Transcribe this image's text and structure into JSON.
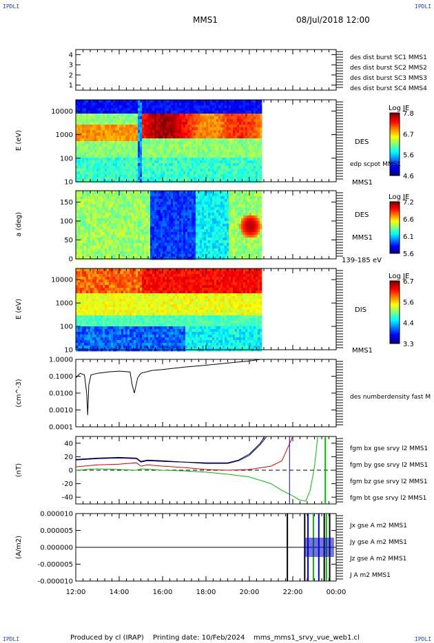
{
  "corners": {
    "tl": "IPDLI",
    "tr": "IPDLI",
    "bl": "IPDLI",
    "br": "IPDLI"
  },
  "header": {
    "mission": "MMS1",
    "date": "08/Jul/2018 12:00"
  },
  "footer": {
    "produced": "Produced by cl (IRAP)",
    "printing": "Printing date: 10/Feb/2024",
    "file": "mms_mms1_srvy_vue_web1.cl"
  },
  "colors": {
    "mms1": "#0000ff",
    "mms2": "#ff00ff",
    "mms3": "#ff0000",
    "mms4": "#00cc00"
  },
  "chart_data": [
    {
      "type": "line",
      "panel": "availability",
      "y_ticks": [
        "4",
        "3",
        "2",
        "1"
      ],
      "ylim": [
        0.5,
        4.5
      ],
      "series": [
        {
          "name": "des dist burst SC1 MMS1",
          "color": "#0000ff"
        },
        {
          "name": "des dist burst SC2 MMS2",
          "color": "#ff00ff"
        },
        {
          "name": "des dist burst SC3 MMS3",
          "color": "#ff0000"
        },
        {
          "name": "des dist burst SC4 MMS4",
          "color": "#00cc00"
        }
      ]
    },
    {
      "type": "heatmap",
      "panel": "des-energy",
      "ylabel": "E (eV)",
      "y_ticks": [
        "10000",
        "1000",
        "100",
        "10"
      ],
      "ylim": [
        10,
        30000
      ],
      "log_y": true,
      "instrument": "DES",
      "note": "edp scpot MMS1",
      "spacecraft": "MMS1",
      "colorbar": {
        "title": "Log JE",
        "ticks": [
          "7.8",
          "6.7",
          "5.6",
          "4.6"
        ],
        "range": [
          4.6,
          7.8
        ]
      },
      "data_end": "20:30"
    },
    {
      "type": "heatmap",
      "panel": "des-pitch",
      "ylabel": "a (deg)",
      "y_ticks": [
        "150",
        "100",
        "50",
        "0"
      ],
      "ylim": [
        0,
        180
      ],
      "instrument": "DES",
      "spacecraft": "MMS1",
      "energy_range": "139-185 eV",
      "colorbar": {
        "title": "Log JE",
        "ticks": [
          "7.2",
          "6.6",
          "6.1",
          "5.6"
        ],
        "range": [
          5.6,
          7.2
        ]
      },
      "data_end": "20:30"
    },
    {
      "type": "heatmap",
      "panel": "dis-energy",
      "ylabel": "E (eV)",
      "y_ticks": [
        "10000",
        "1000",
        "100",
        "10"
      ],
      "ylim": [
        10,
        30000
      ],
      "log_y": true,
      "instrument": "DIS",
      "spacecraft": "MMS1",
      "colorbar": {
        "title": "Log JE",
        "ticks": [
          "6.7",
          "5.6",
          "4.4",
          "3.3"
        ],
        "range": [
          3.3,
          6.7
        ]
      },
      "data_end": "20:30"
    },
    {
      "type": "line",
      "panel": "density",
      "ylabel": "(cm^-3)",
      "y_ticks": [
        "1.0000",
        "0.1000",
        "0.0100",
        "0.0010",
        "0.0001"
      ],
      "ylim": [
        0.0001,
        1.0
      ],
      "log_y": true,
      "series": [
        {
          "name": "des numberdensity fast M",
          "color": "#000000",
          "x": [
            12.0,
            12.2,
            12.4,
            12.5,
            12.55,
            12.6,
            12.7,
            13.0,
            13.5,
            14.0,
            14.5,
            14.6,
            14.7,
            14.85,
            15.0,
            15.5,
            16.0,
            17.0,
            18.0,
            19.0,
            19.5,
            20.0,
            20.5
          ],
          "y": [
            0.08,
            0.15,
            0.12,
            0.01,
            0.0005,
            0.03,
            0.12,
            0.15,
            0.18,
            0.2,
            0.18,
            0.03,
            0.01,
            0.08,
            0.15,
            0.22,
            0.25,
            0.35,
            0.45,
            0.6,
            0.7,
            0.8,
            1.0
          ]
        }
      ]
    },
    {
      "type": "line",
      "panel": "magnetic-field",
      "ylabel": "(nT)",
      "y_ticks": [
        "40",
        "20",
        "0",
        "-20",
        "-40"
      ],
      "ylim": [
        -50,
        50
      ],
      "series": [
        {
          "name": "fgm bx gse srvy l2 MMS1",
          "color": "#dd0000",
          "x": [
            12,
            13,
            14,
            14.8,
            15,
            15.3,
            16,
            17,
            18,
            19,
            20,
            21,
            21.5,
            22
          ],
          "y": [
            5,
            8,
            9,
            11,
            6,
            8,
            6,
            4,
            1,
            0,
            1,
            6,
            14,
            50
          ]
        },
        {
          "name": "fgm by gse srvy l2 MMS1",
          "color": "#00bb00",
          "x": [
            12,
            13,
            14,
            14.8,
            15,
            16,
            17,
            18,
            19,
            20,
            21,
            21.5,
            22,
            22.3,
            22.6,
            22.8,
            23,
            23.15
          ],
          "y": [
            0,
            2,
            1,
            0,
            2,
            0,
            -1,
            -3,
            -6,
            -10,
            -20,
            -30,
            -38,
            -44,
            -46,
            -30,
            5,
            50
          ]
        },
        {
          "name": "fgm bz gse srvy l2 MMS1",
          "color": "#0000cc",
          "x": [
            12,
            13,
            14,
            14.8,
            15,
            15.3,
            16,
            17,
            18,
            19,
            19.5,
            20,
            20.5,
            20.8
          ],
          "y": [
            15,
            17,
            18,
            17,
            12,
            14,
            13,
            12,
            10,
            10,
            14,
            22,
            38,
            50
          ]
        },
        {
          "name": "fgm bt gse srvy l2 MMS1",
          "color": "#000000",
          "x": [
            12,
            13,
            14,
            14.8,
            15,
            15.3,
            16,
            17,
            18,
            19,
            19.5,
            20,
            20.5,
            20.7
          ],
          "y": [
            16,
            18,
            19,
            18,
            13,
            15,
            14,
            12,
            11,
            11,
            15,
            24,
            40,
            50
          ]
        }
      ]
    },
    {
      "type": "line",
      "panel": "current-density",
      "ylabel": "(A/m2)",
      "y_ticks": [
        "0.000010",
        "0.000005",
        "0.000000",
        "-0.000005",
        "-0.000010"
      ],
      "ylim": [
        -1e-05,
        1e-05
      ],
      "series": [
        {
          "name": "Jx gse A m2 MMS1",
          "color": "#dd0000"
        },
        {
          "name": "Jy gse A m2 MMS1",
          "color": "#00bb00"
        },
        {
          "name": "Jz gse A m2 MMS1",
          "color": "#0000cc"
        },
        {
          "name": "J A m2 MMS1",
          "color": "#000000"
        }
      ]
    }
  ],
  "x_axis": {
    "ticks": [
      "12:00",
      "14:00",
      "16:00",
      "18:00",
      "20:00",
      "22:00",
      "00:00"
    ],
    "range_hours": [
      12,
      24
    ]
  }
}
